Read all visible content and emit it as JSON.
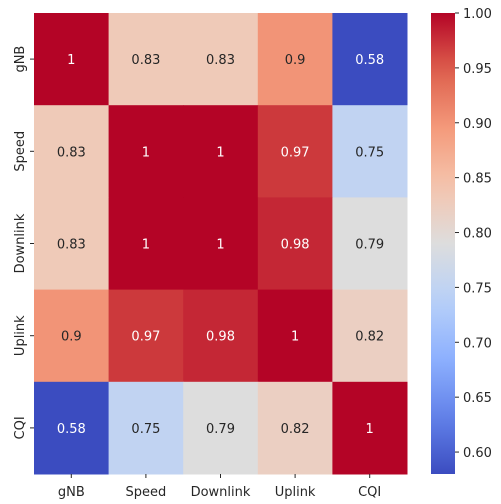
{
  "chart_data": {
    "type": "heatmap",
    "title": "",
    "xlabel": "",
    "ylabel": "",
    "x_categories": [
      "gNB",
      "Speed",
      "Downlink",
      "Uplink",
      "CQI"
    ],
    "y_categories": [
      "gNB",
      "Speed",
      "Downlink",
      "Uplink",
      "CQI"
    ],
    "values": [
      [
        1,
        0.83,
        0.83,
        0.9,
        0.58
      ],
      [
        0.83,
        1,
        1,
        0.97,
        0.75
      ],
      [
        0.83,
        1,
        1,
        0.98,
        0.79
      ],
      [
        0.9,
        0.97,
        0.98,
        1,
        0.82
      ],
      [
        0.58,
        0.75,
        0.79,
        0.82,
        1
      ]
    ],
    "cell_labels": [
      [
        "1",
        "0.83",
        "0.83",
        "0.9",
        "0.58"
      ],
      [
        "0.83",
        "1",
        "1",
        "0.97",
        "0.75"
      ],
      [
        "0.83",
        "1",
        "1",
        "0.98",
        "0.79"
      ],
      [
        "0.9",
        "0.97",
        "0.98",
        "1",
        "0.82"
      ],
      [
        "0.58",
        "0.75",
        "0.79",
        "0.82",
        "1"
      ]
    ],
    "colormap": "coolwarm",
    "vmin": 0.58,
    "vmax": 1.0,
    "colorbar": {
      "ticks": [
        0.6,
        0.65,
        0.7,
        0.75,
        0.8,
        0.85,
        0.9,
        0.95,
        1.0
      ],
      "tick_labels": [
        "0.60",
        "0.65",
        "0.70",
        "0.75",
        "0.80",
        "0.85",
        "0.90",
        "0.95",
        "1.00"
      ]
    }
  }
}
